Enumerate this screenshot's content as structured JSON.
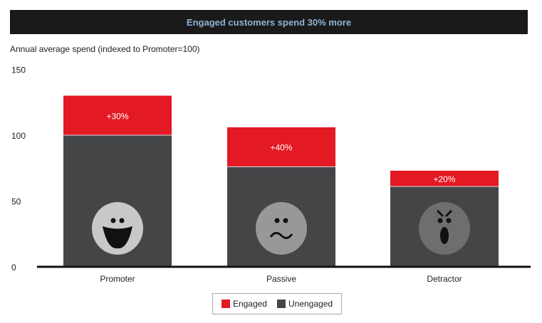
{
  "chart_data": {
    "type": "bar",
    "stacked": true,
    "title": "Engaged customers spend 30% more",
    "ylabel": "Annual average spend (indexed to Promoter=100)",
    "xlabel": "",
    "categories": [
      "Promoter",
      "Passive",
      "Detractor"
    ],
    "ylim": [
      0,
      150
    ],
    "yticks": [
      0,
      50,
      100,
      150
    ],
    "grid": false,
    "series": [
      {
        "name": "Unengaged",
        "values": [
          100,
          76,
          61
        ],
        "color": "#444547"
      },
      {
        "name": "Engaged",
        "values": [
          30,
          30,
          12
        ],
        "color": "#e31923"
      }
    ],
    "data_labels": [
      "+30%",
      "+40%",
      "+20%"
    ],
    "icons": [
      "happy-face-icon",
      "neutral-face-icon",
      "angry-face-icon"
    ],
    "legend": {
      "placement": "bottom",
      "entries": [
        "Engaged",
        "Unengaged"
      ]
    }
  }
}
